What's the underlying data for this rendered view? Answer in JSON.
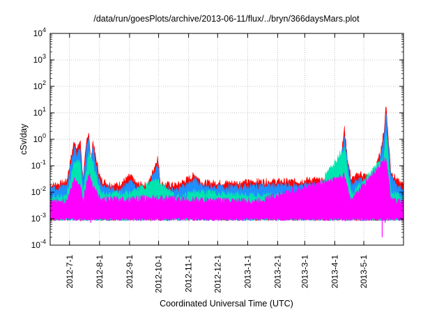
{
  "chart_data": {
    "type": "area",
    "title": "/data/run/goesPlots/archive/2013-06-11/flux/../bryn/366daysMars.plot",
    "xlabel": "Coordinated Universal Time (UTC)",
    "ylabel": "cSv/day",
    "yscale": "log",
    "ylim": [
      0.0001,
      10000
    ],
    "xlim": [
      "2012-06-11",
      "2013-06-11"
    ],
    "grid": true,
    "y_ticks": [
      {
        "base": "10",
        "exp": "4"
      },
      {
        "base": "10",
        "exp": "3"
      },
      {
        "base": "10",
        "exp": "2"
      },
      {
        "base": "10",
        "exp": "1"
      },
      {
        "base": "10",
        "exp": "0"
      },
      {
        "base": "10",
        "exp": "-1"
      },
      {
        "base": "10",
        "exp": "-2"
      },
      {
        "base": "10",
        "exp": "-3"
      },
      {
        "base": "10",
        "exp": "-4"
      }
    ],
    "x_ticks": [
      "2012-7-1",
      "2012-8-1",
      "2012-9-1",
      "2012-10-1",
      "2012-11-1",
      "2012-12-1",
      "2013-1-1",
      "2013-2-1",
      "2013-3-1",
      "2013-4-1",
      "2013-5-1"
    ],
    "series": [
      {
        "color": "#ff0000",
        "points": [
          [
            "2012-06-11",
            0.018
          ],
          [
            "2012-06-20",
            0.02
          ],
          [
            "2012-06-28",
            0.025
          ],
          [
            "2012-07-06",
            0.9
          ],
          [
            "2012-07-09",
            0.4
          ],
          [
            "2012-07-12",
            0.9
          ],
          [
            "2012-07-15",
            0.03
          ],
          [
            "2012-07-19",
            1.0
          ],
          [
            "2012-07-21",
            2.0
          ],
          [
            "2012-07-23",
            0.1
          ],
          [
            "2012-07-25",
            0.9
          ],
          [
            "2012-07-28",
            0.2
          ],
          [
            "2012-08-02",
            0.03
          ],
          [
            "2012-08-10",
            0.02
          ],
          [
            "2012-08-20",
            0.018
          ],
          [
            "2012-09-02",
            0.04
          ],
          [
            "2012-09-08",
            0.02
          ],
          [
            "2012-09-20",
            0.018
          ],
          [
            "2012-09-30",
            0.2
          ],
          [
            "2012-10-03",
            0.02
          ],
          [
            "2012-10-20",
            0.018
          ],
          [
            "2012-11-08",
            0.045
          ],
          [
            "2012-11-15",
            0.022
          ],
          [
            "2012-12-01",
            0.022
          ],
          [
            "2012-12-20",
            0.022
          ],
          [
            "2013-01-10",
            0.025
          ],
          [
            "2013-02-01",
            0.025
          ],
          [
            "2013-02-20",
            0.025
          ],
          [
            "2013-03-10",
            0.03
          ],
          [
            "2013-03-20",
            0.025
          ],
          [
            "2013-04-05",
            0.03
          ],
          [
            "2013-04-11",
            2.5
          ],
          [
            "2013-04-14",
            0.2
          ],
          [
            "2013-04-18",
            0.03
          ],
          [
            "2013-04-28",
            0.05
          ],
          [
            "2013-05-10",
            0.03
          ],
          [
            "2013-05-18",
            0.3
          ],
          [
            "2013-05-22",
            2.0
          ],
          [
            "2013-05-24",
            22
          ],
          [
            "2013-05-26",
            1.5
          ],
          [
            "2013-05-29",
            0.06
          ],
          [
            "2013-06-05",
            0.025
          ],
          [
            "2013-06-11",
            0.018
          ]
        ]
      },
      {
        "color": "#1e90ff",
        "points": [
          [
            "2012-06-11",
            0.013
          ],
          [
            "2012-06-20",
            0.014
          ],
          [
            "2012-06-28",
            0.016
          ],
          [
            "2012-07-06",
            0.5
          ],
          [
            "2012-07-09",
            0.25
          ],
          [
            "2012-07-12",
            0.5
          ],
          [
            "2012-07-15",
            0.02
          ],
          [
            "2012-07-19",
            0.6
          ],
          [
            "2012-07-21",
            1.1
          ],
          [
            "2012-07-23",
            0.06
          ],
          [
            "2012-07-25",
            0.5
          ],
          [
            "2012-07-28",
            0.12
          ],
          [
            "2012-08-02",
            0.02
          ],
          [
            "2012-08-10",
            0.014
          ],
          [
            "2012-08-20",
            0.012
          ],
          [
            "2012-09-02",
            0.025
          ],
          [
            "2012-09-08",
            0.014
          ],
          [
            "2012-09-20",
            0.012
          ],
          [
            "2012-09-30",
            0.12
          ],
          [
            "2012-10-03",
            0.014
          ],
          [
            "2012-10-20",
            0.012
          ],
          [
            "2012-11-08",
            0.03
          ],
          [
            "2012-11-15",
            0.015
          ],
          [
            "2012-12-01",
            0.015
          ],
          [
            "2012-12-20",
            0.015
          ],
          [
            "2013-01-10",
            0.017
          ],
          [
            "2013-02-01",
            0.017
          ],
          [
            "2013-02-20",
            0.017
          ],
          [
            "2013-03-10",
            0.02
          ],
          [
            "2013-03-20",
            0.017
          ],
          [
            "2013-04-05",
            0.02
          ],
          [
            "2013-04-11",
            1.5
          ],
          [
            "2013-04-14",
            0.12
          ],
          [
            "2013-04-18",
            0.02
          ],
          [
            "2013-04-28",
            0.03
          ],
          [
            "2013-05-10",
            0.02
          ],
          [
            "2013-05-18",
            0.18
          ],
          [
            "2013-05-22",
            1.2
          ],
          [
            "2013-05-24",
            9
          ],
          [
            "2013-05-26",
            0.8
          ],
          [
            "2013-05-29",
            0.04
          ],
          [
            "2013-06-05",
            0.016
          ],
          [
            "2013-06-11",
            0.013
          ]
        ]
      },
      {
        "color": "#00e5b0",
        "points": [
          [
            "2012-06-11",
            0.006
          ],
          [
            "2012-06-28",
            0.007
          ],
          [
            "2012-07-06",
            0.15
          ],
          [
            "2012-07-12",
            0.12
          ],
          [
            "2012-07-15",
            0.008
          ],
          [
            "2012-07-21",
            0.3
          ],
          [
            "2012-07-25",
            0.15
          ],
          [
            "2012-08-02",
            0.008
          ],
          [
            "2012-09-02",
            0.009
          ],
          [
            "2012-09-30",
            0.03
          ],
          [
            "2012-10-20",
            0.006
          ],
          [
            "2012-11-08",
            0.01
          ],
          [
            "2013-01-10",
            0.007
          ],
          [
            "2013-03-10",
            0.008
          ],
          [
            "2013-04-11",
            0.5
          ],
          [
            "2013-04-18",
            0.008
          ],
          [
            "2013-05-22",
            0.2
          ],
          [
            "2013-05-24",
            2
          ],
          [
            "2013-05-29",
            0.01
          ],
          [
            "2013-06-11",
            0.006
          ]
        ]
      },
      {
        "color": "#ff00ff",
        "points": [
          [
            "2012-06-11",
            0.004
          ],
          [
            "2012-06-28",
            0.0045
          ],
          [
            "2012-07-06",
            0.03
          ],
          [
            "2012-07-12",
            0.02
          ],
          [
            "2012-07-15",
            0.005
          ],
          [
            "2012-07-21",
            0.05
          ],
          [
            "2012-07-25",
            0.02
          ],
          [
            "2012-08-02",
            0.005
          ],
          [
            "2012-09-30",
            0.006
          ],
          [
            "2012-11-08",
            0.005
          ],
          [
            "2013-01-10",
            0.0045
          ],
          [
            "2013-04-11",
            0.04
          ],
          [
            "2013-04-18",
            0.005
          ],
          [
            "2013-05-24",
            0.2
          ],
          [
            "2013-05-29",
            0.005
          ],
          [
            "2013-06-11",
            0.004
          ]
        ]
      }
    ]
  }
}
